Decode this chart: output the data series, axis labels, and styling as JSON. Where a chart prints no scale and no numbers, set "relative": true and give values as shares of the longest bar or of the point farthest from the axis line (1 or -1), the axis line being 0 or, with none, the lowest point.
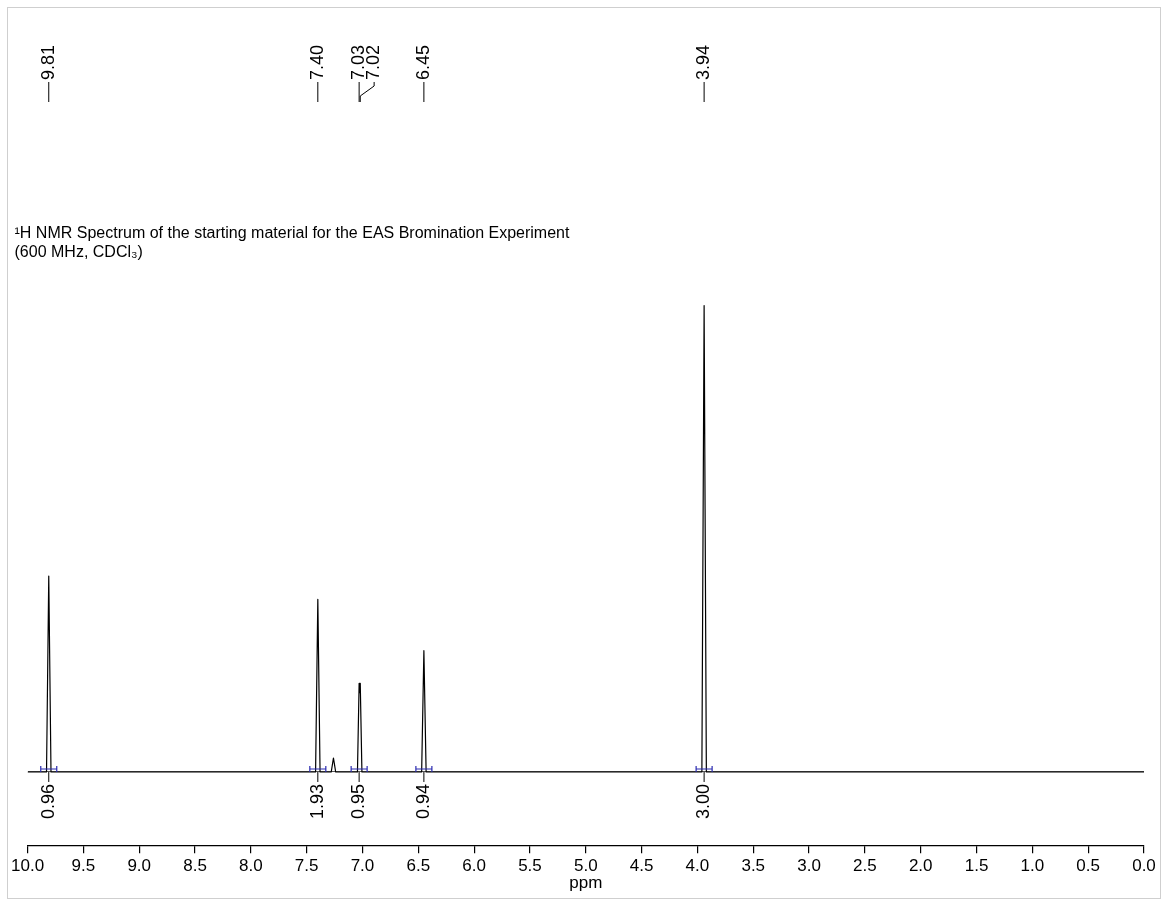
{
  "chart_data": {
    "type": "line",
    "title": "¹H NMR Spectrum of the starting material for the EAS Bromination Experiment",
    "subtitle": "(600 MHz, CDCl₃)",
    "xlabel": "ppm",
    "relative": true,
    "legend": false,
    "grid": false,
    "marker": "none",
    "xlim": [
      10,
      0
    ],
    "xticks": [
      {
        "value": 10,
        "label": "10.0"
      },
      {
        "value": 9.5,
        "label": "9.5"
      },
      {
        "value": 9,
        "label": "9.0"
      },
      {
        "value": 8.5,
        "label": "8.5"
      },
      {
        "value": 8,
        "label": "8.0"
      },
      {
        "value": 7.5,
        "label": "7.5"
      },
      {
        "value": 7,
        "label": "7.0"
      },
      {
        "value": 6.5,
        "label": "6.5"
      },
      {
        "value": 6,
        "label": "6.0"
      },
      {
        "value": 5.5,
        "label": "5.5"
      },
      {
        "value": 5,
        "label": "5.0"
      },
      {
        "value": 4.5,
        "label": "4.5"
      },
      {
        "value": 4,
        "label": "4.0"
      },
      {
        "value": 3.5,
        "label": "3.5"
      },
      {
        "value": 3,
        "label": "3.0"
      },
      {
        "value": 2.5,
        "label": "2.5"
      },
      {
        "value": 2,
        "label": "2.0"
      },
      {
        "value": 1.5,
        "label": "1.5"
      },
      {
        "value": 1,
        "label": "1.0"
      },
      {
        "value": 0.5,
        "label": "0.5"
      },
      {
        "value": 0,
        "label": "0.0"
      }
    ],
    "series": [
      {
        "color": "#000000",
        "x": [
          10,
          9.83,
          9.81,
          9.79,
          7.42,
          7.4,
          7.38,
          7.28,
          7.26,
          7.24,
          7.045,
          7.03,
          7.025,
          7.02,
          7.005,
          6.47,
          6.45,
          6.43,
          3.96,
          3.94,
          3.92,
          0
        ],
        "values": [
          0,
          0,
          0.42,
          0,
          0,
          0.37,
          0,
          0,
          0.03,
          0,
          0,
          0.19,
          0.17,
          0.19,
          0,
          0,
          0.26,
          0,
          0,
          1,
          0,
          0
        ]
      }
    ],
    "annotations": [
      {
        "text": "9.81",
        "x": 9.81
      },
      {
        "text": "7.40",
        "x": 7.4
      },
      {
        "text": "7.03",
        "x": 7.03
      },
      {
        "text": "7.02",
        "x": 7.02
      },
      {
        "text": "6.45",
        "x": 6.45
      },
      {
        "text": "3.94",
        "x": 3.94
      },
      {
        "text": "0.96",
        "x": 9.81,
        "y": 0
      },
      {
        "text": "1.93",
        "x": 7.4,
        "y": 0
      },
      {
        "text": "0.95",
        "x": 7.03,
        "y": 0
      },
      {
        "text": "0.94",
        "x": 6.45,
        "y": 0
      },
      {
        "text": "3.00",
        "x": 3.94,
        "y": 0
      }
    ]
  }
}
